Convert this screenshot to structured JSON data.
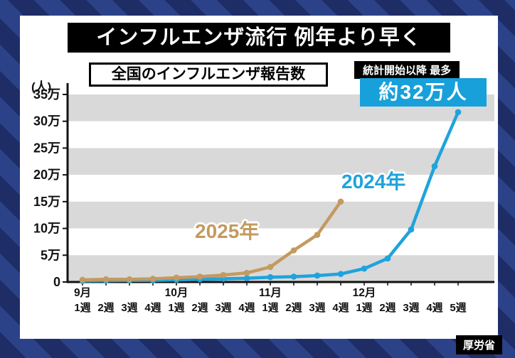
{
  "header": {
    "title": "インフルエンザ流行 例年より早く"
  },
  "chart": {
    "subtitle": "全国のインフルエンザ報告数",
    "unit_label": "(人)"
  },
  "badges": {
    "record_label": "統計開始以降 最多",
    "record_value": "約32万人"
  },
  "footer": {
    "source": "厚労省"
  },
  "colors": {
    "accent_blue": "#1fa3dc",
    "accent_tan": "#c49a5f",
    "band_gray": "#d9d9d9",
    "badge_blue": "#17a0da",
    "bg_navy_dark": "#1e2d66",
    "bg_navy_light": "#2c4288"
  },
  "chart_data": {
    "type": "line",
    "title": "全国のインフルエンザ報告数",
    "unit": "人",
    "values_unit": "万人 (×10,000人)",
    "ylim_10k": [
      0,
      35
    ],
    "y_tick_labels": [
      "0",
      "5万",
      "10万",
      "15万",
      "20万",
      "25万",
      "30万",
      "35万"
    ],
    "grid_bands": true,
    "months": [
      {
        "label": "9月",
        "start_index": 0
      },
      {
        "label": "10月",
        "start_index": 4
      },
      {
        "label": "11月",
        "start_index": 8
      },
      {
        "label": "12月",
        "start_index": 12
      }
    ],
    "week_labels": [
      "1週",
      "2週",
      "3週",
      "4週",
      "1週",
      "2週",
      "3週",
      "4週",
      "1週",
      "2週",
      "3週",
      "4週",
      "1週",
      "2週",
      "3週",
      "4週",
      "5週"
    ],
    "series": [
      {
        "name": "2024年",
        "color": "#1fa3dc",
        "values": [
          0.2,
          0.25,
          0.3,
          0.3,
          0.4,
          0.5,
          0.6,
          0.7,
          0.9,
          1.0,
          1.2,
          1.5,
          2.5,
          4.4,
          9.8,
          21.6,
          31.7
        ]
      },
      {
        "name": "2025年",
        "color": "#c49a5f",
        "values": [
          0.4,
          0.5,
          0.5,
          0.6,
          0.8,
          1.0,
          1.3,
          1.7,
          2.8,
          5.9,
          8.8,
          15.0
        ]
      }
    ],
    "annotation": {
      "label": "統計開始以降 最多",
      "value": "約32万人",
      "series": "2024年",
      "at": "12月5週"
    }
  }
}
